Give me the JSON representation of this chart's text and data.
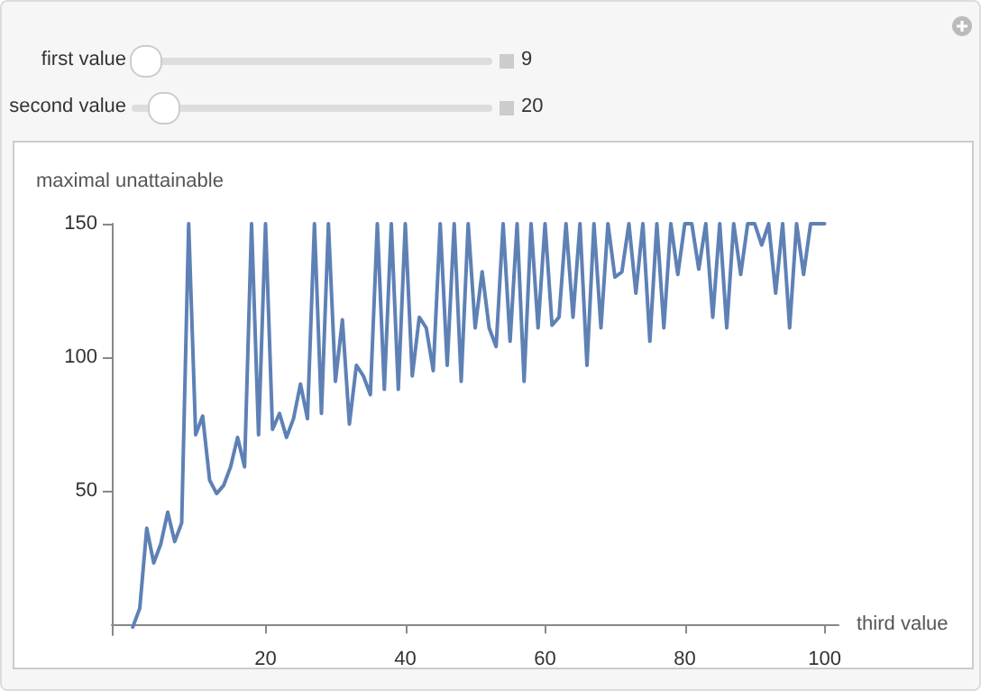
{
  "chart_data": {
    "type": "line",
    "xlabel": "third value",
    "ylabel": "maximal unattainable",
    "annotations": [
      "first value",
      "9",
      "second value",
      "20"
    ],
    "x": [
      1,
      2,
      3,
      4,
      5,
      6,
      7,
      8,
      9,
      10,
      11,
      12,
      13,
      14,
      15,
      16,
      17,
      18,
      19,
      20,
      21,
      22,
      23,
      24,
      25,
      26,
      27,
      28,
      29,
      30,
      31,
      32,
      33,
      34,
      35,
      36,
      37,
      38,
      39,
      40,
      41,
      42,
      43,
      44,
      45,
      46,
      47,
      48,
      49,
      50,
      51,
      52,
      53,
      54,
      55,
      56,
      57,
      58,
      59,
      60,
      61,
      62,
      63,
      64,
      65,
      66,
      67,
      68,
      69,
      70,
      71,
      72,
      73,
      74,
      75,
      76,
      77,
      78,
      79,
      80,
      81,
      82,
      83,
      84,
      85,
      86,
      87,
      88,
      89,
      90,
      91,
      92,
      93,
      94,
      95,
      96,
      97,
      98,
      99,
      100
    ],
    "series": [
      {
        "color": "#5e81b5",
        "values": [
          -1,
          6,
          36,
          23,
          30,
          42,
          31,
          38,
          150,
          71,
          78,
          54,
          49,
          52,
          59,
          70,
          59,
          150,
          71,
          150,
          73,
          79,
          70,
          77,
          90,
          77,
          150,
          79,
          150,
          91,
          114,
          75,
          97,
          93,
          86,
          150,
          88,
          150,
          88,
          150,
          93,
          115,
          111,
          95,
          150,
          97,
          150,
          91,
          150,
          111,
          132,
          111,
          104,
          150,
          106,
          150,
          91,
          150,
          111,
          150,
          112,
          115,
          150,
          115,
          150,
          97,
          150,
          111,
          150,
          130,
          132,
          150,
          124,
          150,
          106,
          150,
          111,
          150,
          131,
          150,
          150,
          133,
          150,
          115,
          150,
          111,
          150,
          131,
          150,
          150,
          142,
          150,
          124,
          150,
          111,
          150,
          131,
          150,
          150,
          150
        ]
      }
    ],
    "xlim": [
      -2,
      102
    ],
    "ylim": [
      -4,
      150
    ],
    "xticks": [
      20,
      40,
      60,
      80,
      100
    ],
    "yticks": [
      50,
      100,
      150
    ],
    "marker": "none",
    "line_style": "solid"
  }
}
